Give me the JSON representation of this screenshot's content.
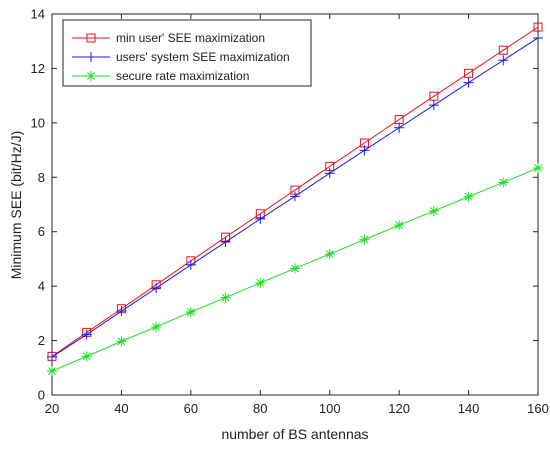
{
  "chart_data": {
    "type": "line",
    "title": "",
    "xlabel": "number of BS antennas",
    "ylabel": "Minimum SEE (bit/Hz/J)",
    "xlim": [
      20,
      160
    ],
    "ylim": [
      0,
      14
    ],
    "xticks": [
      20,
      40,
      60,
      80,
      100,
      120,
      140,
      160
    ],
    "yticks": [
      0,
      2,
      4,
      6,
      8,
      10,
      12,
      14
    ],
    "grid": false,
    "legend_position": "top-left",
    "x": [
      20,
      30,
      40,
      50,
      60,
      70,
      80,
      90,
      100,
      110,
      120,
      130,
      140,
      150,
      160
    ],
    "series": [
      {
        "name": "min user' SEE maximization",
        "color": "#e8141c",
        "marker": "square",
        "values": [
          1.42,
          2.3,
          3.17,
          4.05,
          4.93,
          5.8,
          6.66,
          7.53,
          8.4,
          9.26,
          10.12,
          10.98,
          11.82,
          12.67,
          13.52
        ]
      },
      {
        "name": "users' system SEE maximization",
        "color": "#1a1aee",
        "marker": "plus",
        "values": [
          1.4,
          2.22,
          3.08,
          3.93,
          4.78,
          5.62,
          6.47,
          7.3,
          8.15,
          8.99,
          9.82,
          10.65,
          11.48,
          12.3,
          13.12
        ]
      },
      {
        "name": "secure rate maximization",
        "color": "#22dd22",
        "marker": "asterisk",
        "values": [
          0.88,
          1.42,
          1.97,
          2.5,
          3.05,
          3.58,
          4.12,
          4.65,
          5.18,
          5.71,
          6.24,
          6.76,
          7.29,
          7.81,
          8.34
        ]
      }
    ]
  }
}
